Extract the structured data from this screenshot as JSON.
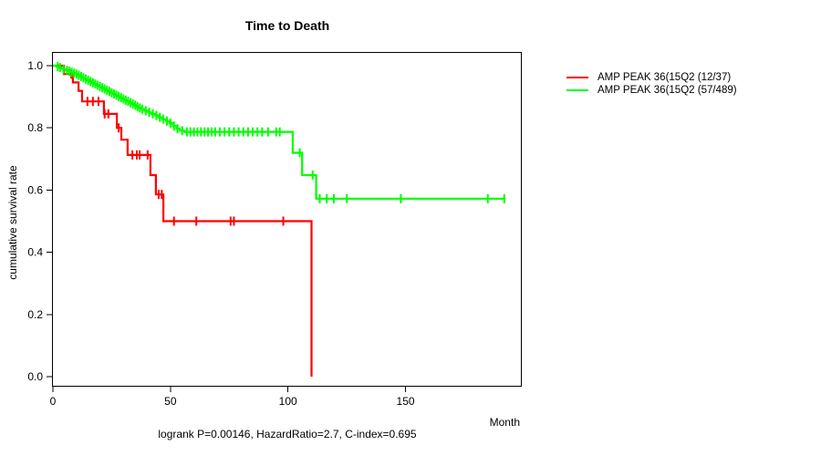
{
  "title": "Time to Death",
  "chart_data": {
    "type": "line",
    "subtype": "kaplan-meier-step-survival",
    "title": "Time to Death",
    "xlabel": "Month",
    "ylabel": "cumulative survival rate",
    "xlim": [
      0,
      199
    ],
    "ylim": [
      0.0,
      1.0
    ],
    "xticks": [
      0,
      50,
      100,
      150
    ],
    "yticks": [
      0.0,
      0.2,
      0.4,
      0.6,
      0.8,
      1.0
    ],
    "grid": false,
    "legend_position": "right-outside",
    "annotation": "logrank P=0.00146, HazardRatio=2.7, C-index=0.695",
    "series": [
      {
        "name": "AMP PEAK 36(15Q2 (12/37)",
        "color": "#ff0000",
        "events_over_n": "12/37",
        "end_month": 110,
        "steps": [
          [
            0,
            1.0
          ],
          [
            4.7,
            0.973
          ],
          [
            8.5,
            0.946
          ],
          [
            10.9,
            0.919
          ],
          [
            12.4,
            0.885
          ],
          [
            21.7,
            0.845
          ],
          [
            27.2,
            0.8
          ],
          [
            29.1,
            0.762
          ],
          [
            31.8,
            0.713
          ],
          [
            41.5,
            0.648
          ],
          [
            43.8,
            0.586
          ],
          [
            47,
            0.5
          ],
          [
            110,
            0.0
          ]
        ],
        "censor_months": [
          7.8,
          14.7,
          17,
          19.4,
          22,
          23.6,
          28,
          33.8,
          35.7,
          36.9,
          40.3,
          45,
          46.3,
          51.5,
          61,
          75.6,
          77,
          98
        ]
      },
      {
        "name": "AMP PEAK 36(15Q2 (57/489)",
        "color": "#00ff00",
        "events_over_n": "57/489",
        "end_month": 192,
        "steps": [
          [
            0,
            1.0
          ],
          [
            1.5,
            0.997
          ],
          [
            2.5,
            0.994
          ],
          [
            3.5,
            0.991
          ],
          [
            4.5,
            0.988
          ],
          [
            5.5,
            0.985
          ],
          [
            6.5,
            0.982
          ],
          [
            7.5,
            0.979
          ],
          [
            8.5,
            0.976
          ],
          [
            9.5,
            0.973
          ],
          [
            10.5,
            0.969
          ],
          [
            11.5,
            0.965
          ],
          [
            12.5,
            0.961
          ],
          [
            13.5,
            0.957
          ],
          [
            14.5,
            0.953
          ],
          [
            15.5,
            0.949
          ],
          [
            16.5,
            0.945
          ],
          [
            17.5,
            0.941
          ],
          [
            18.5,
            0.937
          ],
          [
            19.5,
            0.933
          ],
          [
            20.5,
            0.929
          ],
          [
            21.5,
            0.925
          ],
          [
            22.5,
            0.921
          ],
          [
            23.5,
            0.917
          ],
          [
            24.5,
            0.913
          ],
          [
            25.5,
            0.909
          ],
          [
            26.5,
            0.905
          ],
          [
            27.5,
            0.901
          ],
          [
            28.5,
            0.897
          ],
          [
            29.5,
            0.893
          ],
          [
            30.5,
            0.889
          ],
          [
            31.5,
            0.885
          ],
          [
            32.5,
            0.881
          ],
          [
            33.5,
            0.877
          ],
          [
            34.5,
            0.873
          ],
          [
            35.5,
            0.868
          ],
          [
            36.5,
            0.864
          ],
          [
            37.5,
            0.86
          ],
          [
            39,
            0.855
          ],
          [
            40.5,
            0.85
          ],
          [
            42,
            0.845
          ],
          [
            43.5,
            0.84
          ],
          [
            45,
            0.834
          ],
          [
            46.5,
            0.828
          ],
          [
            48,
            0.822
          ],
          [
            49.5,
            0.815
          ],
          [
            51,
            0.806
          ],
          [
            52.5,
            0.797
          ],
          [
            54,
            0.791
          ],
          [
            56,
            0.787
          ],
          [
            102,
            0.72
          ],
          [
            106,
            0.648
          ],
          [
            112,
            0.572
          ]
        ],
        "censor_months": [
          2,
          3,
          4.5,
          6,
          7,
          8,
          9,
          10,
          11,
          12,
          13,
          14,
          15,
          16,
          17,
          18,
          19,
          20,
          21,
          22,
          23,
          24,
          25,
          26,
          27,
          28,
          29,
          30,
          31,
          32,
          33,
          34,
          35,
          36,
          37,
          38,
          39.5,
          41,
          42.5,
          44,
          45.5,
          47,
          48.5,
          50,
          51.5,
          53,
          55,
          57,
          58.5,
          60,
          61.5,
          63,
          64.5,
          66,
          67.5,
          69,
          71,
          73,
          75,
          77,
          79,
          81,
          83,
          85,
          87,
          89,
          91.5,
          95,
          96.5,
          105,
          110.5,
          113.5,
          116.5,
          119.5,
          125,
          148,
          185,
          192
        ]
      }
    ]
  }
}
